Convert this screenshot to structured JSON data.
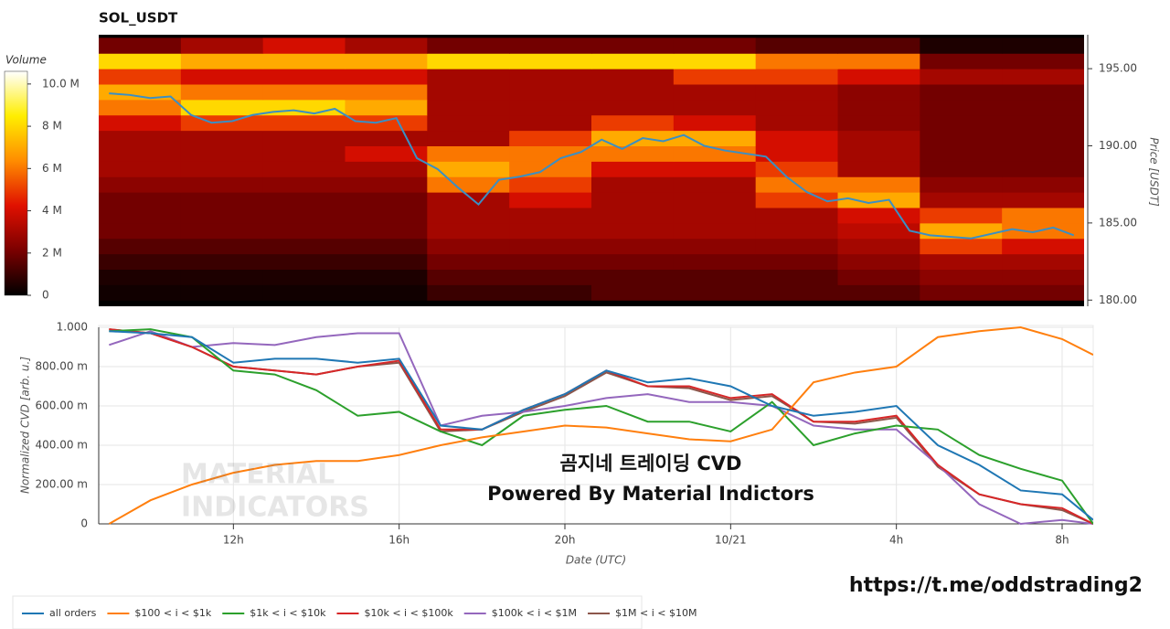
{
  "chart_data": [
    {
      "type": "heatmap",
      "title": "SOL_USDT",
      "ylabel": "Price [USDT]",
      "x_bins": [
        8.75,
        10.75,
        12.75,
        14.75,
        16.75,
        18.75,
        20.75,
        22.75,
        24.75,
        26.75,
        28.75,
        30.75,
        32.75
      ],
      "y_bins": [
        180,
        181,
        182,
        183,
        184,
        185,
        186,
        187,
        188,
        189,
        190,
        191,
        192,
        193,
        194,
        195,
        196,
        197
      ],
      "values": [
        [
          0.3,
          0.3,
          0.3,
          0.3,
          1,
          1,
          1.5,
          1.5,
          1.5,
          1.5,
          2,
          2
        ],
        [
          0.5,
          0.5,
          0.5,
          0.5,
          1.5,
          1.5,
          1.5,
          1.5,
          1.5,
          2,
          2.5,
          2.5
        ],
        [
          1,
          1,
          1,
          1,
          2,
          2,
          2,
          2,
          2,
          2.5,
          3,
          3
        ],
        [
          1.5,
          1.5,
          1.5,
          1.5,
          2.5,
          2.5,
          2.5,
          2.5,
          2.5,
          3,
          5,
          4
        ],
        [
          2,
          2,
          2,
          2,
          3,
          3,
          3,
          3,
          3,
          3.5,
          7,
          6
        ],
        [
          2,
          2,
          2,
          2,
          3,
          3,
          3,
          3,
          3,
          4,
          5,
          6
        ],
        [
          2,
          2,
          2,
          2,
          3,
          4,
          3,
          3,
          5,
          7,
          3,
          3
        ],
        [
          2.5,
          2.5,
          2.5,
          2.5,
          6,
          5,
          3,
          3,
          6,
          6,
          2.5,
          2.5
        ],
        [
          3,
          3,
          3,
          3,
          7,
          6,
          4,
          4,
          5,
          3,
          2,
          2
        ],
        [
          3,
          3,
          3,
          4,
          6,
          6,
          6,
          6,
          4,
          3,
          2,
          2
        ],
        [
          3,
          3,
          3,
          3,
          3,
          5,
          7,
          7,
          4,
          3,
          2,
          2
        ],
        [
          4,
          5,
          5,
          5,
          3,
          3,
          5,
          4,
          3,
          2.5,
          2,
          2
        ],
        [
          6,
          8,
          8,
          7,
          3,
          3,
          3,
          3,
          3,
          2.5,
          2,
          2
        ],
        [
          7,
          6,
          6,
          6,
          3,
          3,
          3,
          3,
          3,
          2.5,
          2,
          2
        ],
        [
          5,
          4,
          4,
          4,
          3,
          3,
          3,
          5,
          5,
          4,
          3,
          3
        ],
        [
          8,
          7,
          7,
          7,
          8,
          8,
          8,
          8,
          6,
          6,
          2,
          2
        ],
        [
          2,
          3,
          4,
          3,
          2,
          2,
          2,
          2,
          1.5,
          1.5,
          0.5,
          0.5
        ]
      ],
      "colorscale": [
        "#000000",
        "#7a0000",
        "#e01000",
        "#ff8c00",
        "#ffee00",
        "#ffffff"
      ],
      "xlim": [
        8.75,
        32.75
      ],
      "ylim": [
        179.6,
        197.2
      ],
      "yticks": [
        {
          "value": 180,
          "label": "180.00"
        },
        {
          "value": 185,
          "label": "185.00"
        },
        {
          "value": 190,
          "label": "190.00"
        },
        {
          "value": 195,
          "label": "195.00"
        }
      ],
      "colorbar": {
        "label": "Volume",
        "lim": [
          0,
          10.6
        ],
        "ticks": [
          0,
          {
            "value": 2,
            "label": "2 M"
          },
          {
            "value": 4,
            "label": "4 M"
          },
          {
            "value": 6,
            "label": "6 M"
          },
          {
            "value": 8,
            "label": "8 M"
          },
          {
            "value": 10,
            "label": "10.0 M"
          }
        ]
      },
      "price_line": {
        "color": "#3a8fc4",
        "x": [
          9,
          9.5,
          10,
          10.5,
          11,
          11.5,
          12,
          12.5,
          13,
          13.5,
          14,
          14.5,
          15,
          15.5,
          16,
          16.5,
          17,
          17.5,
          18,
          18.5,
          19,
          19.5,
          20,
          20.5,
          21,
          21.5,
          22,
          22.5,
          23,
          23.5,
          24,
          24.5,
          25,
          25.5,
          26,
          26.5,
          27,
          27.5,
          28,
          28.5,
          29,
          29.5,
          30,
          30.5,
          31,
          31.5,
          32,
          32.5
        ],
        "values": [
          193.4,
          193.3,
          193.1,
          193.2,
          192.0,
          191.5,
          191.6,
          192.0,
          192.2,
          192.3,
          192.1,
          192.4,
          191.6,
          191.5,
          191.8,
          189.2,
          188.5,
          187.3,
          186.2,
          187.8,
          188.0,
          188.3,
          189.2,
          189.6,
          190.4,
          189.8,
          190.5,
          190.3,
          190.7,
          190.0,
          189.7,
          189.5,
          189.3,
          188.0,
          187.0,
          186.4,
          186.6,
          186.3,
          186.5,
          184.5,
          184.2,
          184.1,
          184.0,
          184.3,
          184.6,
          184.4,
          184.7,
          184.2
        ]
      }
    },
    {
      "type": "line",
      "xlabel": "Date (UTC)",
      "ylabel": "Normalized CVD [arb. u.]",
      "grid": true,
      "x": [
        9,
        10,
        11,
        12,
        13,
        14,
        15,
        16,
        17,
        18,
        19,
        20,
        21,
        22,
        23,
        24,
        25,
        26,
        27,
        28,
        29,
        30,
        31,
        32,
        32.75
      ],
      "xlim": [
        8.75,
        32.75
      ],
      "ylim": [
        0,
        1
      ],
      "xticks": [
        {
          "value": 12,
          "label": "12h"
        },
        {
          "value": 16,
          "label": "16h"
        },
        {
          "value": 20,
          "label": "20h"
        },
        {
          "value": 24,
          "label": "10/21"
        },
        {
          "value": 28,
          "label": "4h"
        },
        {
          "value": 32,
          "label": "8h"
        }
      ],
      "yticks": [
        0,
        {
          "value": 0.2,
          "label": "200.00 m"
        },
        {
          "value": 0.4,
          "label": "400.00 m"
        },
        {
          "value": 0.6,
          "label": "600.00 m"
        },
        {
          "value": 0.8,
          "label": "800.00 m"
        },
        {
          "value": 1,
          "label": "1.000"
        }
      ],
      "series": [
        {
          "name": "all orders",
          "color": "#1f77b4",
          "values": [
            0.98,
            0.97,
            0.95,
            0.82,
            0.84,
            0.84,
            0.82,
            0.84,
            0.5,
            0.48,
            0.58,
            0.66,
            0.78,
            0.72,
            0.74,
            0.7,
            0.6,
            0.55,
            0.57,
            0.6,
            0.4,
            0.3,
            0.17,
            0.15,
            0.02
          ]
        },
        {
          "name": "$100 < i < $1k",
          "color": "#ff7f0e",
          "values": [
            0.0,
            0.12,
            0.2,
            0.26,
            0.3,
            0.32,
            0.32,
            0.35,
            0.4,
            0.44,
            0.47,
            0.5,
            0.49,
            0.46,
            0.43,
            0.42,
            0.48,
            0.72,
            0.77,
            0.8,
            0.95,
            0.98,
            1.0,
            0.94,
            0.86
          ]
        },
        {
          "name": "$1k < i < $10k",
          "color": "#2ca02c",
          "values": [
            0.98,
            0.99,
            0.95,
            0.78,
            0.76,
            0.68,
            0.55,
            0.57,
            0.47,
            0.4,
            0.55,
            0.58,
            0.6,
            0.52,
            0.52,
            0.47,
            0.62,
            0.4,
            0.46,
            0.5,
            0.48,
            0.35,
            0.28,
            0.22,
            0.0
          ]
        },
        {
          "name": "$10k < i < $100k",
          "color": "#d62728",
          "values": [
            0.99,
            0.97,
            0.9,
            0.8,
            0.78,
            0.76,
            0.8,
            0.83,
            0.48,
            0.48,
            0.58,
            0.66,
            0.78,
            0.7,
            0.7,
            0.64,
            0.66,
            0.52,
            0.52,
            0.55,
            0.3,
            0.15,
            0.1,
            0.08,
            0.0
          ]
        },
        {
          "name": "$100k < i < $1M",
          "color": "#9467bd",
          "values": [
            0.91,
            0.98,
            0.9,
            0.92,
            0.91,
            0.95,
            0.97,
            0.97,
            0.5,
            0.55,
            0.57,
            0.6,
            0.64,
            0.66,
            0.62,
            0.62,
            0.6,
            0.5,
            0.48,
            0.48,
            0.3,
            0.1,
            0.0,
            0.02,
            0.0
          ]
        },
        {
          "name": "$1M < i < $10M",
          "color": "#8c564b",
          "values": [
            0.99,
            0.97,
            0.9,
            0.8,
            0.78,
            0.76,
            0.8,
            0.82,
            0.47,
            0.48,
            0.57,
            0.65,
            0.77,
            0.7,
            0.69,
            0.63,
            0.65,
            0.52,
            0.51,
            0.54,
            0.29,
            0.15,
            0.1,
            0.07,
            0.0
          ]
        }
      ]
    }
  ],
  "annotations": [
    "곰지네 트레이딩 CVD",
    "Powered By Material Indictors"
  ],
  "watermark": [
    "MATERIAL",
    "INDICATORS"
  ],
  "link": "https://t.me/oddstrading2"
}
